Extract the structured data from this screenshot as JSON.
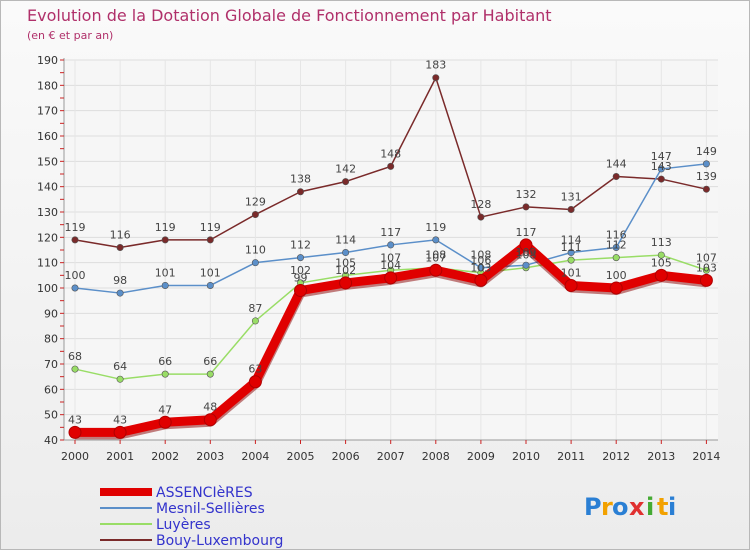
{
  "chart_data": {
    "type": "line",
    "title": "Evolution de la Dotation Globale de Fonctionnement par Habitant",
    "subtitle": "(en € et par an)",
    "xlabel": "",
    "ylabel": "",
    "ylim": [
      40,
      190
    ],
    "y_ticks": [
      "40",
      "50",
      "60",
      "70",
      "80",
      "90",
      "100",
      "110",
      "120",
      "130",
      "140",
      "150",
      "160",
      "170",
      "180",
      "190"
    ],
    "categories": [
      "2000",
      "2001",
      "2002",
      "2003",
      "2004",
      "2005",
      "2006",
      "2007",
      "2008",
      "2009",
      "2010",
      "2011",
      "2012",
      "2013",
      "2014"
    ],
    "grid": true,
    "legend_position": "bottom-left",
    "series": [
      {
        "name": "ASSENCIèRES",
        "color": "#e00000",
        "values": [
          43,
          43,
          47,
          48,
          63,
          99,
          102,
          104,
          107,
          103,
          117,
          101,
          100,
          105,
          103
        ],
        "labels": [
          "43",
          "43",
          "47",
          "48",
          "63",
          "99",
          "102",
          "104",
          "107",
          "103",
          "117",
          "101",
          "100",
          "105",
          "103"
        ]
      },
      {
        "name": "Mesnil-Sellières",
        "color": "#5b8fc9",
        "values": [
          100,
          98,
          101,
          101,
          110,
          112,
          114,
          117,
          119,
          108,
          109,
          114,
          116,
          147,
          149
        ],
        "labels": [
          "100",
          "98",
          "101",
          "101",
          "110",
          "112",
          "114",
          "117",
          "119",
          "108",
          "109",
          "114",
          "116",
          "147",
          "149"
        ]
      },
      {
        "name": "Luyères",
        "color": "#99dd66",
        "values": [
          68,
          64,
          66,
          66,
          87,
          102,
          105,
          107,
          108,
          106,
          108,
          111,
          112,
          113,
          107
        ],
        "labels": [
          "68",
          "64",
          "66",
          "66",
          "87",
          "102",
          "105",
          "107",
          "108",
          "106",
          "108",
          "111",
          "112",
          "113",
          "107"
        ]
      },
      {
        "name": "Bouy-Luxembourg",
        "color": "#7a2a2a",
        "values": [
          119,
          116,
          119,
          119,
          129,
          138,
          142,
          148,
          183,
          128,
          132,
          131,
          144,
          143,
          139
        ],
        "labels": [
          "119",
          "116",
          "119",
          "119",
          "129",
          "138",
          "142",
          "148",
          "183",
          "128",
          "132",
          "131",
          "144",
          "143",
          "139"
        ]
      }
    ]
  },
  "logo": {
    "letters": [
      "P",
      "r",
      "o",
      "x",
      "i",
      "t",
      "i"
    ],
    "colors": [
      "#2a7fd4",
      "#f2a100",
      "#2a7fd4",
      "#e03030",
      "#44aa33",
      "#f2a100",
      "#2a7fd4"
    ]
  }
}
